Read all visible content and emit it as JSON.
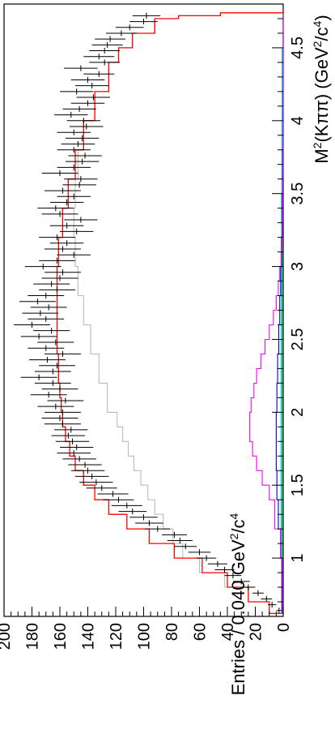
{
  "chart_data": {
    "type": "line",
    "orientation": "rotated-90-clockwise",
    "xlabel_parts": {
      "base": "M",
      "sup": "2",
      "rest": "(Kππ) (GeV",
      "sup2": "2",
      "mid": "/c",
      "sup3": "4",
      "end": ")"
    },
    "ylabel_parts": {
      "base": "Entries / 0.040 GeV",
      "sup": "2",
      "mid": "/c",
      "sup2": "4"
    },
    "xlim": [
      0.6,
      4.8
    ],
    "ylim": [
      0,
      200
    ],
    "x_ticks": [
      1,
      1.5,
      2,
      2.5,
      3,
      3.5,
      4,
      4.5
    ],
    "x_tick_labels": [
      "1",
      "1.5",
      "2",
      "2.5",
      "3",
      "3.5",
      "4",
      "4.5"
    ],
    "y_ticks": [
      0,
      20,
      40,
      60,
      80,
      100,
      120,
      140,
      160,
      180,
      200
    ],
    "y_tick_labels": [
      "0",
      "20",
      "40",
      "60",
      "80",
      "100",
      "120",
      "140",
      "160",
      "180",
      "200"
    ],
    "colors": {
      "total_fit": "#ff0000",
      "phase_space": "#bbbbbb",
      "resonance_magenta": "#ff00ff",
      "resonance_blue": "#0000cc",
      "resonance_cyan": "#00cccc",
      "resonance_green": "#00cc66",
      "data": "#000000"
    },
    "series": [
      {
        "key": "total_fit",
        "x": [
          0.62,
          0.7,
          0.8,
          0.9,
          1.0,
          1.1,
          1.2,
          1.3,
          1.4,
          1.5,
          1.6,
          1.7,
          1.8,
          1.9,
          2.0,
          2.1,
          2.2,
          2.4,
          2.6,
          2.8,
          3.0,
          3.2,
          3.4,
          3.6,
          3.8,
          4.0,
          4.2,
          4.4,
          4.5,
          4.6,
          4.7,
          4.72,
          4.74,
          4.76
        ],
        "y": [
          0,
          10,
          25,
          40,
          58,
          78,
          96,
          112,
          125,
          135,
          143,
          149,
          153,
          156,
          158,
          159,
          160,
          161,
          162,
          162,
          162,
          161,
          158,
          154,
          149,
          143,
          135,
          125,
          118,
          108,
          92,
          75,
          45,
          0
        ]
      },
      {
        "key": "phase_space",
        "x": [
          0.62,
          0.7,
          0.8,
          0.9,
          1.0,
          1.1,
          1.2,
          1.3,
          1.4,
          1.5,
          1.6,
          1.7,
          1.8,
          1.9,
          2.0,
          2.2,
          2.4,
          2.6,
          2.8,
          3.0,
          3.2,
          3.4,
          3.6,
          3.8,
          4.0,
          4.2,
          4.4,
          4.5,
          4.6,
          4.7,
          4.72,
          4.74,
          4.76
        ],
        "y": [
          0,
          10,
          25,
          42,
          60,
          72,
          79,
          86,
          92,
          97,
          102,
          107,
          111,
          115,
          119,
          126,
          132,
          138,
          143,
          147,
          149,
          150,
          149,
          147,
          143,
          135,
          125,
          118,
          108,
          92,
          75,
          45,
          0
        ]
      },
      {
        "key": "resonance_magenta",
        "x": [
          0.62,
          1.0,
          1.2,
          1.4,
          1.5,
          1.6,
          1.7,
          1.8,
          1.9,
          2.0,
          2.1,
          2.2,
          2.3,
          2.4,
          2.5,
          2.6,
          2.7,
          2.8,
          2.9,
          3.0,
          3.1,
          3.3,
          3.6,
          4.0,
          4.76
        ],
        "y": [
          0,
          0.5,
          2,
          6,
          10,
          15,
          19,
          22,
          24,
          24,
          23,
          21,
          19,
          16,
          13,
          10,
          7,
          5,
          3.5,
          2.5,
          1.5,
          0.8,
          0.3,
          0.1,
          0
        ]
      },
      {
        "key": "resonance_blue",
        "x": [
          0.62,
          1.0,
          1.2,
          1.4,
          1.6,
          1.8,
          2.0,
          2.2,
          2.4,
          2.6,
          2.8,
          3.0,
          3.2,
          3.5,
          3.8,
          4.2,
          4.76
        ],
        "y": [
          0,
          1,
          2,
          3.5,
          4.5,
          5,
          5,
          4.5,
          4,
          3.2,
          2.5,
          1.8,
          1.2,
          0.7,
          0.4,
          0.1,
          0
        ]
      },
      {
        "key": "resonance_cyan",
        "x": [
          0.62,
          1.0,
          1.5,
          2.0,
          2.5,
          3.0,
          3.5,
          4.0,
          4.5,
          4.76
        ],
        "y": [
          0,
          1,
          1.5,
          1.6,
          1.5,
          1.4,
          1.2,
          1.0,
          0.8,
          0
        ]
      },
      {
        "key": "resonance_green",
        "x": [
          0.62,
          1.0,
          1.5,
          2.0,
          2.5,
          3.0,
          3.5,
          4.0,
          4.5,
          4.76
        ],
        "y": [
          0,
          0.5,
          0.8,
          0.8,
          0.7,
          0.6,
          0.5,
          0.4,
          0.3,
          0
        ]
      }
    ],
    "data_points": {
      "bin_width": 0.04,
      "x": [
        0.64,
        0.68,
        0.72,
        0.76,
        0.8,
        0.84,
        0.88,
        0.92,
        0.96,
        1.0,
        1.04,
        1.08,
        1.12,
        1.16,
        1.2,
        1.24,
        1.28,
        1.32,
        1.36,
        1.4,
        1.44,
        1.48,
        1.52,
        1.56,
        1.6,
        1.64,
        1.68,
        1.72,
        1.76,
        1.8,
        1.84,
        1.88,
        1.92,
        1.96,
        2.0,
        2.04,
        2.08,
        2.12,
        2.16,
        2.2,
        2.24,
        2.28,
        2.32,
        2.36,
        2.4,
        2.44,
        2.48,
        2.52,
        2.56,
        2.6,
        2.64,
        2.68,
        2.72,
        2.76,
        2.8,
        2.84,
        2.88,
        2.92,
        2.96,
        3.0,
        3.04,
        3.08,
        3.12,
        3.16,
        3.2,
        3.24,
        3.28,
        3.32,
        3.36,
        3.4,
        3.44,
        3.48,
        3.52,
        3.56,
        3.6,
        3.64,
        3.68,
        3.72,
        3.76,
        3.8,
        3.84,
        3.88,
        3.92,
        3.96,
        4.0,
        4.04,
        4.08,
        4.12,
        4.16,
        4.2,
        4.24,
        4.28,
        4.32,
        4.36,
        4.4,
        4.44,
        4.48,
        4.52,
        4.56,
        4.6,
        4.64,
        4.68,
        4.72
      ],
      "y": [
        3,
        8,
        12,
        18,
        25,
        30,
        36,
        42,
        47,
        55,
        60,
        70,
        74,
        78,
        90,
        96,
        100,
        108,
        112,
        118,
        122,
        130,
        134,
        137,
        140,
        142,
        146,
        150,
        148,
        151,
        154,
        152,
        158,
        160,
        158,
        163,
        156,
        168,
        160,
        165,
        175,
        165,
        162,
        169,
        158,
        170,
        163,
        175,
        166,
        180,
        170,
        174,
        168,
        176,
        170,
        162,
        166,
        160,
        158,
        172,
        162,
        150,
        158,
        155,
        162,
        148,
        155,
        145,
        160,
        163,
        155,
        150,
        158,
        146,
        145,
        160,
        150,
        144,
        142,
        150,
        147,
        144,
        150,
        141,
        143,
        152,
        146,
        140,
        136,
        148,
        137,
        140,
        132,
        145,
        128,
        132,
        128,
        126,
        124,
        116,
        110,
        100,
        98
      ],
      "err": [
        2,
        3,
        4,
        4,
        5,
        6,
        6,
        7,
        7,
        7,
        8,
        8,
        9,
        9,
        9,
        10,
        10,
        10,
        11,
        11,
        11,
        11,
        12,
        12,
        12,
        12,
        12,
        12,
        12,
        12,
        12,
        12,
        13,
        13,
        13,
        13,
        13,
        13,
        13,
        13,
        13,
        13,
        13,
        13,
        13,
        13,
        13,
        13,
        13,
        13,
        13,
        13,
        13,
        13,
        13,
        13,
        13,
        13,
        13,
        13,
        13,
        12,
        13,
        12,
        13,
        12,
        12,
        12,
        13,
        13,
        12,
        12,
        13,
        12,
        12,
        13,
        12,
        12,
        12,
        12,
        12,
        12,
        12,
        12,
        12,
        12,
        12,
        12,
        12,
        12,
        12,
        12,
        11,
        12,
        11,
        11,
        11,
        11,
        11,
        11,
        10,
        10,
        10
      ]
    }
  }
}
